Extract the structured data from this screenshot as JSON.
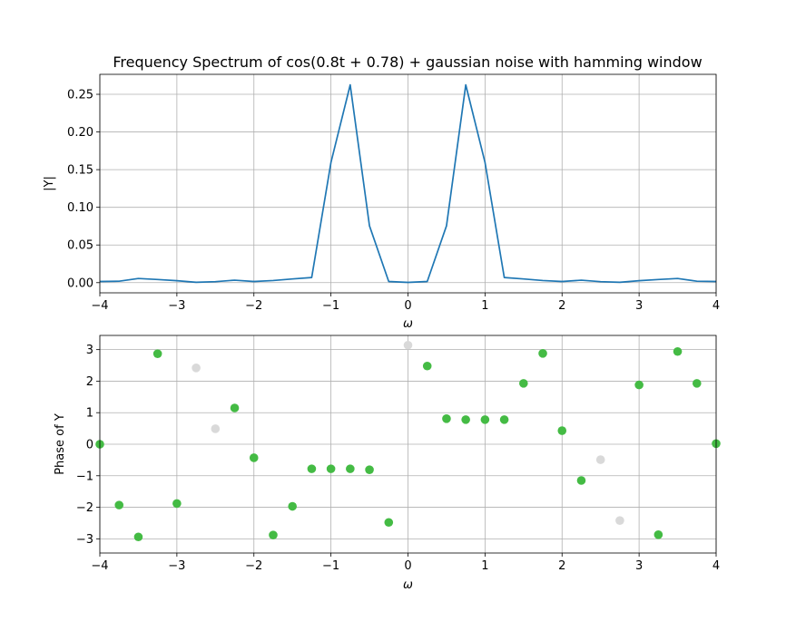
{
  "chart_data": [
    {
      "type": "line",
      "title": "Frequency Spectrum of cos(0.8t + 0.78) + gaussian noise with hamming window",
      "xlabel": "ω",
      "ylabel": "|Y|",
      "xlim": [
        -4,
        4
      ],
      "ylim": [
        -0.0135,
        0.2765
      ],
      "xticks": [
        -4,
        -3,
        -2,
        -1,
        0,
        1,
        2,
        3,
        4
      ],
      "xtick_labels": [
        "−4",
        "−3",
        "−2",
        "−1",
        "0",
        "1",
        "2",
        "3",
        "4"
      ],
      "yticks": [
        0,
        0.05,
        0.1,
        0.15,
        0.2,
        0.25
      ],
      "ytick_labels": [
        "0.00",
        "0.05",
        "0.10",
        "0.15",
        "0.20",
        "0.25"
      ],
      "grid": true,
      "series": [
        {
          "color": "#1f77b4",
          "x": [
            -4,
            -3.75,
            -3.5,
            -3.25,
            -3,
            -2.75,
            -2.5,
            -2.25,
            -2,
            -1.75,
            -1.5,
            -1.25,
            -1,
            -0.75,
            -0.5,
            -0.25,
            0,
            0.25,
            0.5,
            0.75,
            1,
            1.25,
            1.5,
            1.75,
            2,
            2.25,
            2.5,
            2.75,
            3,
            3.25,
            3.5,
            3.75,
            4
          ],
          "y": [
            0.0015,
            0.0019,
            0.0055,
            0.0042,
            0.0026,
            0.0005,
            0.0013,
            0.0033,
            0.0015,
            0.0028,
            0.0049,
            0.0068,
            0.1595,
            0.2625,
            0.0755,
            0.0015,
            0.0003,
            0.0015,
            0.0755,
            0.2625,
            0.1595,
            0.0068,
            0.0049,
            0.0028,
            0.0015,
            0.0033,
            0.0013,
            0.0005,
            0.0026,
            0.0042,
            0.0055,
            0.0019,
            0.0015
          ]
        }
      ]
    },
    {
      "type": "scatter",
      "title": "",
      "xlabel": "ω",
      "ylabel": "Phase of Y",
      "xlim": [
        -4,
        4
      ],
      "ylim": [
        -3.45,
        3.45
      ],
      "xticks": [
        -4,
        -3,
        -2,
        -1,
        0,
        1,
        2,
        3,
        4
      ],
      "xtick_labels": [
        "−4",
        "−3",
        "−2",
        "−1",
        "0",
        "1",
        "2",
        "3",
        "4"
      ],
      "yticks": [
        -3,
        -2,
        -1,
        0,
        1,
        2,
        3
      ],
      "ytick_labels": [
        "−3",
        "−2",
        "−1",
        "0",
        "1",
        "2",
        "3"
      ],
      "grid": true,
      "colors": {
        "significant": "#44bb44",
        "insignificant": "#d9d9d9"
      },
      "points": [
        {
          "x": -4,
          "y": 0,
          "c": "significant"
        },
        {
          "x": -3.75,
          "y": -1.93,
          "c": "significant"
        },
        {
          "x": -3.5,
          "y": -2.94,
          "c": "significant"
        },
        {
          "x": -3.25,
          "y": 2.87,
          "c": "significant"
        },
        {
          "x": -3,
          "y": -1.88,
          "c": "significant"
        },
        {
          "x": -2.75,
          "y": 2.42,
          "c": "insignificant"
        },
        {
          "x": -2.5,
          "y": 0.49,
          "c": "insignificant"
        },
        {
          "x": -2.25,
          "y": 1.15,
          "c": "significant"
        },
        {
          "x": -2,
          "y": -0.43,
          "c": "significant"
        },
        {
          "x": -1.75,
          "y": -2.88,
          "c": "significant"
        },
        {
          "x": -1.5,
          "y": -1.97,
          "c": "significant"
        },
        {
          "x": -1.25,
          "y": -0.78,
          "c": "significant"
        },
        {
          "x": -1,
          "y": -0.78,
          "c": "significant"
        },
        {
          "x": -0.75,
          "y": -0.78,
          "c": "significant"
        },
        {
          "x": -0.5,
          "y": -0.81,
          "c": "significant"
        },
        {
          "x": -0.25,
          "y": -2.48,
          "c": "significant"
        },
        {
          "x": 0,
          "y": 3.14,
          "c": "insignificant"
        },
        {
          "x": 0.25,
          "y": 2.48,
          "c": "significant"
        },
        {
          "x": 0.5,
          "y": 0.81,
          "c": "significant"
        },
        {
          "x": 0.75,
          "y": 0.78,
          "c": "significant"
        },
        {
          "x": 1,
          "y": 0.78,
          "c": "significant"
        },
        {
          "x": 1.25,
          "y": 0.78,
          "c": "significant"
        },
        {
          "x": 1.5,
          "y": 1.93,
          "c": "significant"
        },
        {
          "x": 1.75,
          "y": 2.88,
          "c": "significant"
        },
        {
          "x": 2,
          "y": 0.43,
          "c": "significant"
        },
        {
          "x": 2.25,
          "y": -1.15,
          "c": "significant"
        },
        {
          "x": 2.5,
          "y": -0.49,
          "c": "insignificant"
        },
        {
          "x": 2.75,
          "y": -2.42,
          "c": "insignificant"
        },
        {
          "x": 3,
          "y": 1.88,
          "c": "significant"
        },
        {
          "x": 3.25,
          "y": -2.87,
          "c": "significant"
        },
        {
          "x": 3.5,
          "y": 2.94,
          "c": "significant"
        },
        {
          "x": 3.75,
          "y": 1.93,
          "c": "significant"
        },
        {
          "x": 4,
          "y": 0.02,
          "c": "significant"
        }
      ]
    }
  ]
}
